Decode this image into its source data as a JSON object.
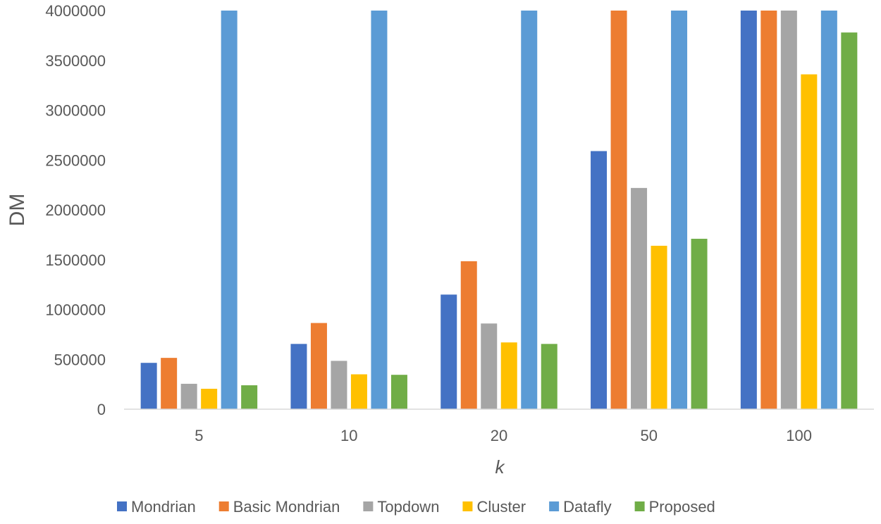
{
  "chart_data": {
    "type": "bar",
    "xlabel": "k",
    "ylabel": "DM",
    "ylim": [
      0,
      4000000
    ],
    "yticks": [
      0,
      500000,
      1000000,
      1500000,
      2000000,
      2500000,
      3000000,
      3500000,
      4000000
    ],
    "ytick_labels": [
      "0",
      "500000",
      "1000000",
      "1500000",
      "2000000",
      "2500000",
      "3000000",
      "3500000",
      "4000000"
    ],
    "categories": [
      "5",
      "10",
      "20",
      "50",
      "100"
    ],
    "grid": false,
    "legend_position": "bottom",
    "series": [
      {
        "name": "Mondrian",
        "color": "#4472C4",
        "values": [
          465000,
          655000,
          1150000,
          2590000,
          4000000
        ]
      },
      {
        "name": "Basic Mondrian",
        "color": "#ED7D31",
        "values": [
          515000,
          865000,
          1485000,
          4000000,
          4000000
        ]
      },
      {
        "name": "Topdown",
        "color": "#A5A5A5",
        "values": [
          255000,
          485000,
          860000,
          2220000,
          4000000
        ]
      },
      {
        "name": "Cluster",
        "color": "#FFC000",
        "values": [
          205000,
          350000,
          670000,
          1640000,
          3360000
        ]
      },
      {
        "name": "Datafly",
        "color": "#5B9BD5",
        "values": [
          4000000,
          4000000,
          4000000,
          4000000,
          4000000
        ]
      },
      {
        "name": "Proposed",
        "color": "#70AD47",
        "values": [
          240000,
          345000,
          655000,
          1710000,
          3780000
        ]
      }
    ]
  }
}
